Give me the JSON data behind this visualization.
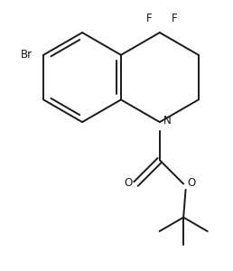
{
  "background": "#ffffff",
  "line_color": "#1a1a1a",
  "line_width": 1.4,
  "font_size": 8.5,
  "figsize": [
    2.58,
    3.0
  ],
  "dpi": 100,
  "xlim": [
    -2.6,
    2.4
  ],
  "ylim": [
    -4.2,
    1.6
  ]
}
